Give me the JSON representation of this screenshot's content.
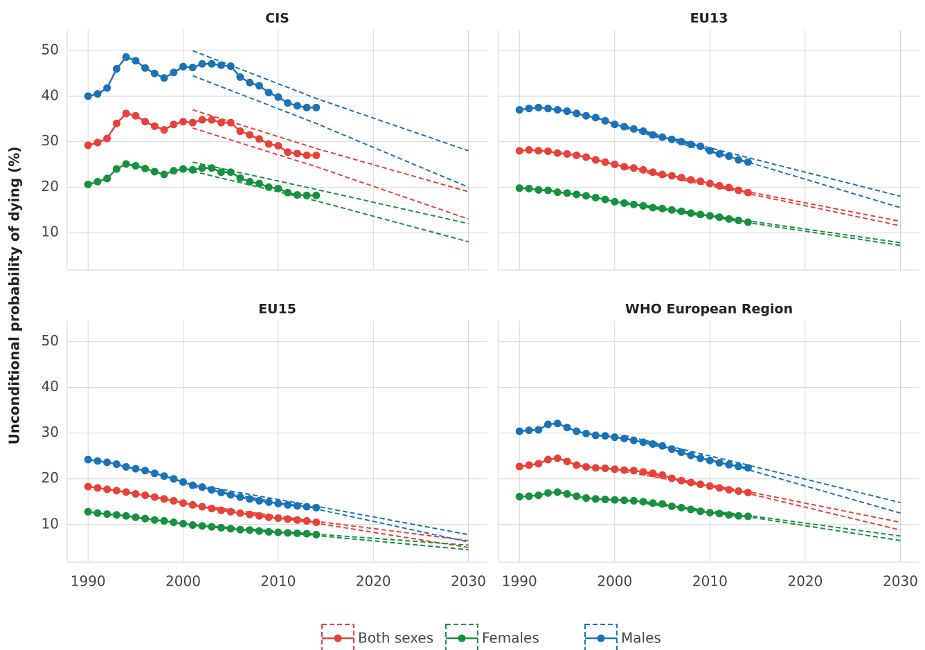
{
  "chart_data": [
    {
      "type": "line",
      "title": "CIS",
      "ylabel": "Unconditional probability of dying (%)",
      "xlim": [
        1987.8,
        2032
      ],
      "ylim": [
        1.8,
        54.6
      ],
      "xticks": [
        1990,
        2000,
        2010,
        2020,
        2030
      ],
      "yticks": [
        10,
        20,
        30,
        40,
        50
      ],
      "grid": true,
      "x": [
        1990,
        1991,
        1992,
        1993,
        1994,
        1995,
        1996,
        1997,
        1998,
        1999,
        2000,
        2001,
        2002,
        2003,
        2004,
        2005,
        2006,
        2007,
        2008,
        2009,
        2010,
        2011,
        2012,
        2013,
        2014
      ],
      "proj_x": [
        2001,
        2014,
        2030
      ],
      "series": [
        {
          "name": "Both sexes",
          "color": "#e8413a",
          "values": [
            29.2,
            29.8,
            30.7,
            34.0,
            36.2,
            35.7,
            34.4,
            33.4,
            32.6,
            33.8,
            34.4,
            34.2,
            34.8,
            34.8,
            34.2,
            34.2,
            32.3,
            31.5,
            30.6,
            29.5,
            29.1,
            27.7,
            27.4,
            27.0,
            27.0
          ],
          "proj_upper": [
            37,
            28.5,
            19
          ],
          "proj_lower": [
            33,
            24.5,
            13
          ]
        },
        {
          "name": "Females",
          "color": "#17913f",
          "values": [
            20.6,
            21.2,
            21.9,
            24.0,
            25.1,
            24.7,
            24.1,
            23.4,
            22.8,
            23.6,
            24.0,
            23.8,
            24.2,
            24.2,
            23.3,
            23.3,
            22.0,
            21.2,
            20.8,
            20.0,
            19.7,
            18.8,
            18.3,
            18.2,
            18.2
          ],
          "proj_upper": [
            25.5,
            19.5,
            12
          ],
          "proj_lower": [
            23.5,
            17,
            8
          ]
        },
        {
          "name": "Males",
          "color": "#1a73b8",
          "values": [
            40.0,
            40.5,
            41.8,
            46.0,
            48.6,
            47.8,
            46.2,
            45.0,
            44.0,
            45.2,
            46.5,
            46.3,
            47.1,
            47.1,
            46.8,
            46.6,
            44.2,
            43.0,
            42.3,
            40.8,
            39.8,
            38.5,
            37.9,
            37.5,
            37.5
          ],
          "proj_upper": [
            50,
            39.5,
            28
          ],
          "proj_lower": [
            44.5,
            34,
            20
          ]
        }
      ]
    },
    {
      "type": "line",
      "title": "EU13",
      "xlim": [
        1987.8,
        2032
      ],
      "ylim": [
        1.8,
        54.6
      ],
      "xticks": [
        1990,
        2000,
        2010,
        2020,
        2030
      ],
      "yticks": [
        10,
        20,
        30,
        40,
        50
      ],
      "grid": true,
      "x": [
        1990,
        1991,
        1992,
        1993,
        1994,
        1995,
        1996,
        1997,
        1998,
        1999,
        2000,
        2001,
        2002,
        2003,
        2004,
        2005,
        2006,
        2007,
        2008,
        2009,
        2010,
        2011,
        2012,
        2013,
        2014
      ],
      "proj_x": [
        2001,
        2014,
        2030
      ],
      "series": [
        {
          "name": "Both sexes",
          "color": "#e8413a",
          "values": [
            28,
            28.2,
            28,
            27.9,
            27.5,
            27.3,
            27,
            26.6,
            26,
            25.5,
            25,
            24.5,
            24.2,
            23.8,
            23.3,
            22.8,
            22.5,
            22.1,
            21.6,
            21.3,
            20.8,
            20.3,
            19.9,
            19.3,
            18.8
          ],
          "proj_upper": [
            24.6,
            19,
            12.5
          ],
          "proj_lower": [
            24.2,
            18.6,
            11.5
          ]
        },
        {
          "name": "Females",
          "color": "#17913f",
          "values": [
            19.8,
            19.7,
            19.4,
            19.3,
            18.9,
            18.7,
            18.4,
            18.1,
            17.7,
            17.3,
            16.8,
            16.5,
            16.2,
            15.9,
            15.5,
            15.3,
            15,
            14.7,
            14.3,
            14,
            13.7,
            13.4,
            13,
            12.7,
            12.3
          ],
          "proj_upper": [
            16.7,
            12.6,
            7.8
          ],
          "proj_lower": [
            16.3,
            12.2,
            7.2
          ]
        },
        {
          "name": "Males",
          "color": "#1a73b8",
          "values": [
            37,
            37.3,
            37.5,
            37.3,
            37,
            36.7,
            36.2,
            35.7,
            35.3,
            34.6,
            33.8,
            33.3,
            32.8,
            32.3,
            31.5,
            31.0,
            30.5,
            30.0,
            29.4,
            29.0,
            28.0,
            27.3,
            26.8,
            26.0,
            25.5
          ],
          "proj_upper": [
            33.5,
            26.5,
            18
          ],
          "proj_lower": [
            33,
            25.5,
            15.5
          ]
        }
      ]
    },
    {
      "type": "line",
      "title": "EU15",
      "xlim": [
        1987.8,
        2032
      ],
      "ylim": [
        1.8,
        54.6
      ],
      "xticks": [
        1990,
        2000,
        2010,
        2020,
        2030
      ],
      "yticks": [
        10,
        20,
        30,
        40,
        50
      ],
      "grid": true,
      "x": [
        1990,
        1991,
        1992,
        1993,
        1994,
        1995,
        1996,
        1997,
        1998,
        1999,
        2000,
        2001,
        2002,
        2003,
        2004,
        2005,
        2006,
        2007,
        2008,
        2009,
        2010,
        2011,
        2012,
        2013,
        2014
      ],
      "proj_x": [
        2001,
        2014,
        2030
      ],
      "series": [
        {
          "name": "Both sexes",
          "color": "#e8413a",
          "values": [
            18.3,
            18,
            17.7,
            17.4,
            17.1,
            16.7,
            16.4,
            16,
            15.6,
            15.2,
            14.7,
            14.3,
            13.9,
            13.5,
            13.1,
            12.8,
            12.5,
            12.2,
            11.9,
            11.6,
            11.4,
            11.2,
            11,
            10.8,
            10.5
          ],
          "proj_upper": [
            14.4,
            10.7,
            6.5
          ],
          "proj_lower": [
            14.1,
            10.3,
            5
          ]
        },
        {
          "name": "Females",
          "color": "#17913f",
          "values": [
            12.8,
            12.5,
            12.3,
            12.1,
            11.9,
            11.6,
            11.3,
            11,
            10.8,
            10.5,
            10.2,
            9.9,
            9.7,
            9.5,
            9.3,
            9.1,
            8.9,
            8.8,
            8.6,
            8.4,
            8.3,
            8.2,
            8.1,
            8.0,
            7.8
          ],
          "proj_upper": [
            10,
            7.9,
            5.5
          ],
          "proj_lower": [
            9.8,
            7.6,
            4.5
          ]
        },
        {
          "name": "Males",
          "color": "#1a73b8",
          "values": [
            24.2,
            23.9,
            23.6,
            23.2,
            22.6,
            22.2,
            21.8,
            21.2,
            20.6,
            20.0,
            19.3,
            18.6,
            18.2,
            17.6,
            17.0,
            16.5,
            16.0,
            15.6,
            15.2,
            14.9,
            14.6,
            14.3,
            14.1,
            13.9,
            13.7
          ],
          "proj_upper": [
            18.8,
            14,
            7.8
          ],
          "proj_lower": [
            18.2,
            13.4,
            6.2
          ]
        }
      ]
    },
    {
      "type": "line",
      "title": "WHO European Region",
      "xlim": [
        1987.8,
        2032
      ],
      "ylim": [
        1.8,
        54.6
      ],
      "xticks": [
        1990,
        2000,
        2010,
        2020,
        2030
      ],
      "yticks": [
        10,
        20,
        30,
        40,
        50
      ],
      "grid": true,
      "x": [
        1990,
        1991,
        1992,
        1993,
        1994,
        1995,
        1996,
        1997,
        1998,
        1999,
        2000,
        2001,
        2002,
        2003,
        2004,
        2005,
        2006,
        2007,
        2008,
        2009,
        2010,
        2011,
        2012,
        2013,
        2014
      ],
      "proj_x": [
        2001,
        2014,
        2030
      ],
      "series": [
        {
          "name": "Both sexes",
          "color": "#e8413a",
          "values": [
            22.7,
            23.0,
            23.3,
            24.2,
            24.5,
            23.8,
            23.0,
            22.6,
            22.4,
            22.3,
            22.1,
            21.9,
            21.8,
            21.5,
            21.2,
            20.8,
            20.1,
            19.6,
            19.2,
            18.8,
            18.4,
            18,
            17.6,
            17.3,
            17.0
          ],
          "proj_upper": [
            22,
            17.2,
            10.5
          ],
          "proj_lower": [
            21.6,
            16.8,
            8.8
          ]
        },
        {
          "name": "Females",
          "color": "#17913f",
          "values": [
            16.1,
            16.2,
            16.4,
            16.9,
            17.1,
            16.7,
            16.2,
            15.8,
            15.6,
            15.5,
            15.4,
            15.3,
            15.2,
            15.0,
            14.7,
            14.5,
            14.0,
            13.7,
            13.3,
            12.9,
            12.6,
            12.4,
            12.1,
            11.9,
            11.8
          ],
          "proj_upper": [
            15.4,
            12,
            7.5
          ],
          "proj_lower": [
            15.2,
            11.7,
            6.5
          ]
        },
        {
          "name": "Males",
          "color": "#1a73b8",
          "values": [
            30.4,
            30.6,
            30.7,
            31.9,
            32.1,
            31.2,
            30.4,
            29.9,
            29.5,
            29.4,
            29.1,
            28.8,
            28.4,
            28.0,
            27.6,
            27.2,
            26.5,
            25.8,
            25.1,
            24.5,
            24.0,
            23.5,
            23.1,
            22.7,
            22.4
          ],
          "proj_upper": [
            29.5,
            23,
            14.8
          ],
          "proj_lower": [
            29,
            22,
            12.5
          ]
        }
      ]
    }
  ]
}
